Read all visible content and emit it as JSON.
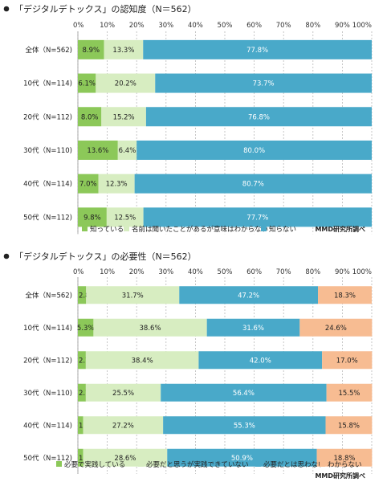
{
  "source": "MMD研究所調べ",
  "chart_data": [
    {
      "type": "bar",
      "orientation": "horizontal",
      "stacked": true,
      "title": "「デジタルデトックス」の認知度（N＝562）",
      "xlim": [
        0,
        100
      ],
      "x_ticks": [
        "0%",
        "10%",
        "20%",
        "30%",
        "40%",
        "50%",
        "60%",
        "70%",
        "80%",
        "90%",
        "100%"
      ],
      "categories": [
        "全体（N=562)",
        "10代（N=114)",
        "20代（N=112)",
        "30代（N=110)",
        "40代（N=114)",
        "50代（N=112)"
      ],
      "series": [
        {
          "name": "知っている",
          "color": "#8cc859",
          "values": [
            8.9,
            6.1,
            8.0,
            13.6,
            7.0,
            9.8
          ]
        },
        {
          "name": "名前は聞いたことがあるが意味はわからない",
          "color": "#d7edc1",
          "values": [
            13.3,
            20.2,
            15.2,
            6.4,
            12.3,
            12.5
          ]
        },
        {
          "name": "知らない",
          "color": "#49a9c9",
          "values": [
            77.8,
            73.7,
            76.8,
            80.0,
            80.7,
            77.7
          ]
        }
      ],
      "grid": true,
      "legend_position": "bottom"
    },
    {
      "type": "bar",
      "orientation": "horizontal",
      "stacked": true,
      "title": "「デジタルデトックス」の必要性（N＝562）",
      "xlim": [
        0,
        100
      ],
      "x_ticks": [
        "0%",
        "10%",
        "20%",
        "30%",
        "40%",
        "50%",
        "60%",
        "70%",
        "80%",
        "90%",
        "100%"
      ],
      "categories": [
        "全体（N=562)",
        "10代（N=114)",
        "20代（N=112)",
        "30代（N=110)",
        "40代（N=114)",
        "50代（N=112)"
      ],
      "series": [
        {
          "name": "必要で実践している",
          "color": "#8cc859",
          "values": [
            2.8,
            5.3,
            2.7,
            2.7,
            1.8,
            1.8
          ]
        },
        {
          "name": "必要だと思うが実践できていない",
          "color": "#d7edc1",
          "values": [
            31.7,
            38.6,
            38.4,
            25.5,
            27.2,
            28.6
          ]
        },
        {
          "name": "必要だとは思わない",
          "color": "#49a9c9",
          "values": [
            47.2,
            31.6,
            42.0,
            56.4,
            55.3,
            50.9
          ]
        },
        {
          "name": "わからない",
          "color": "#f7bc92",
          "values": [
            18.3,
            24.6,
            17.0,
            15.5,
            15.8,
            18.8
          ]
        }
      ],
      "grid": true,
      "legend_position": "bottom"
    }
  ]
}
